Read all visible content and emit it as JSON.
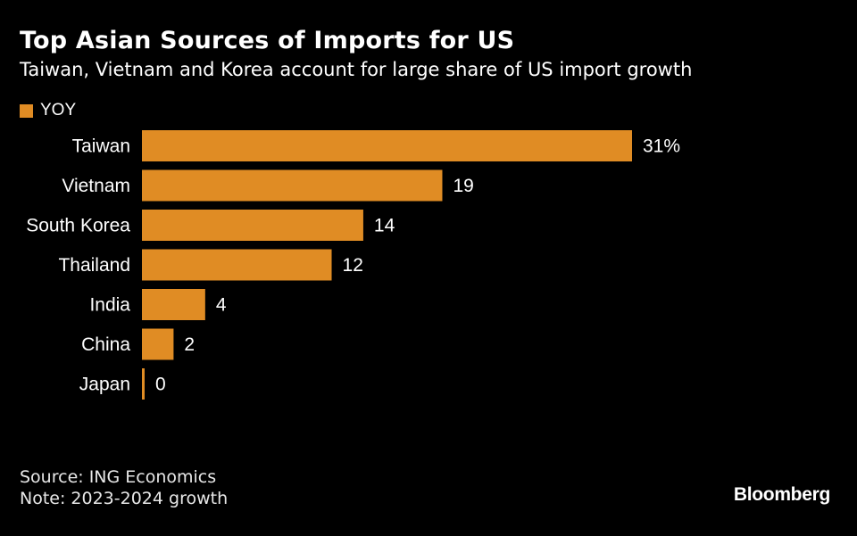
{
  "header": {
    "title": "Top Asian Sources of Imports for US",
    "subtitle": "Taiwan, Vietnam and Korea account for large share of US import growth"
  },
  "footer": {
    "source": "Source: ING Economics",
    "note": "Note: 2023-2024 growth",
    "brand": "Bloomberg"
  },
  "chart_data": {
    "type": "bar",
    "orientation": "horizontal",
    "title": "Top Asian Sources of Imports for US",
    "subtitle": "Taiwan, Vietnam and Korea account for large share of US import growth",
    "legend": {
      "placement": "top-left",
      "entries": [
        "YOY"
      ]
    },
    "categories": [
      "Taiwan",
      "Vietnam",
      "South Korea",
      "Thailand",
      "India",
      "China",
      "Japan"
    ],
    "series": [
      {
        "name": "YOY",
        "color": "#e08c24",
        "values": [
          31,
          19,
          14,
          12,
          4,
          2,
          0
        ],
        "data_labels": [
          "31%",
          "19",
          "14",
          "12",
          "4",
          "2",
          "0"
        ]
      }
    ],
    "xlim": [
      0,
      31
    ],
    "grid": false,
    "axis_ticks_shown": false
  }
}
